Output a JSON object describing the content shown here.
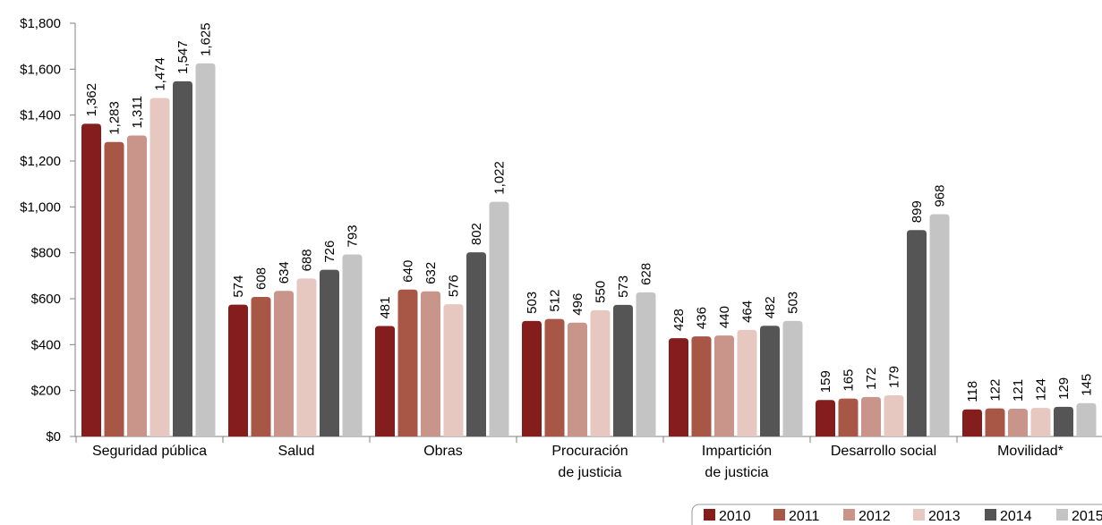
{
  "chart_data": {
    "type": "bar",
    "categories": [
      [
        "Seguridad pública"
      ],
      [
        "Salud"
      ],
      [
        "Obras"
      ],
      [
        "Procuración",
        "de justicia"
      ],
      [
        "Impartición",
        "de justicia"
      ],
      [
        "Desarrollo social"
      ],
      [
        "Movilidad*"
      ]
    ],
    "series": [
      {
        "name": "2010",
        "color": "#861d1d",
        "values": [
          1362,
          574,
          481,
          503,
          428,
          159,
          118
        ],
        "labels": [
          "1,362",
          "574",
          "481",
          "503",
          "428",
          "159",
          "118"
        ]
      },
      {
        "name": "2011",
        "color": "#a85646",
        "values": [
          1283,
          608,
          640,
          512,
          436,
          165,
          122
        ],
        "labels": [
          "1,283",
          "608",
          "640",
          "512",
          "436",
          "165",
          "122"
        ]
      },
      {
        "name": "2012",
        "color": "#c9958a",
        "values": [
          1311,
          634,
          632,
          496,
          440,
          172,
          121
        ],
        "labels": [
          "1,311",
          "634",
          "632",
          "496",
          "440",
          "172",
          "121"
        ]
      },
      {
        "name": "2013",
        "color": "#e6c8c0",
        "values": [
          1474,
          688,
          576,
          550,
          464,
          179,
          124
        ],
        "labels": [
          "1,474",
          "688",
          "576",
          "550",
          "464",
          "179",
          "124"
        ]
      },
      {
        "name": "2014",
        "color": "#555555",
        "values": [
          1547,
          726,
          802,
          573,
          482,
          899,
          129
        ],
        "labels": [
          "1,547",
          "726",
          "802",
          "573",
          "482",
          "899",
          "129"
        ]
      },
      {
        "name": "2015",
        "color": "#c4c4c4",
        "values": [
          1625,
          793,
          1022,
          628,
          503,
          968,
          145
        ],
        "labels": [
          "1,625",
          "793",
          "1,022",
          "628",
          "503",
          "968",
          "145"
        ]
      }
    ],
    "ylim": [
      0,
      1800
    ],
    "yticks": [
      0,
      200,
      400,
      600,
      800,
      1000,
      1200,
      1400,
      1600,
      1800
    ],
    "ytick_labels": [
      "$0",
      "$200",
      "$400",
      "$600",
      "$800",
      "$1,000",
      "$1,200",
      "$1,400",
      "$1,600",
      "$1,800"
    ],
    "legend_position": "bottom-right",
    "grid": false
  }
}
